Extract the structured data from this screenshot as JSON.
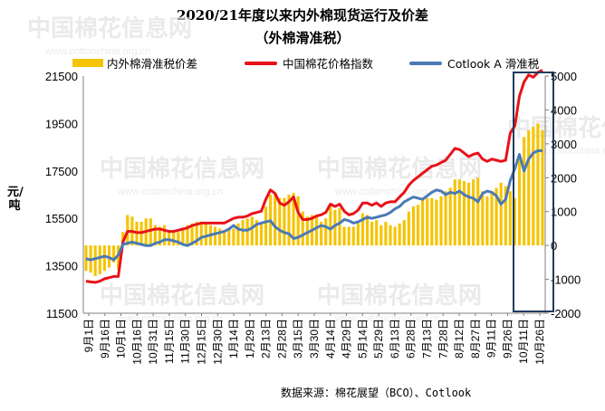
{
  "page": {
    "title": "2020/21年度以来内外棉现货运行及价差",
    "subtitle": "（外棉滑准税）",
    "source": "数据来源：棉花展望（BCO）、Cotlook"
  },
  "legend": {
    "series1": "内外棉滑准税价差",
    "series2": "中国棉花价格指数",
    "series3": "Cotlook A 滑准税"
  },
  "watermark": {
    "cn": "中国棉花信息网",
    "en": "www.cottonchina.org.cn"
  },
  "colors": {
    "spread": "#f5c400",
    "china_index": "#e8121a",
    "cotlook": "#4a7ab5",
    "highlight_box": "#1f3b5c"
  },
  "chart_data": {
    "type": "line",
    "ylabel": "元/吨",
    "y_left": {
      "lim": [
        11500,
        21500
      ],
      "ticks": [
        11500,
        13500,
        15500,
        17500,
        19500,
        21500
      ]
    },
    "y_right": {
      "lim": [
        -2000,
        5000
      ],
      "ticks": [
        -2000,
        -1000,
        0,
        1000,
        2000,
        3000,
        4000,
        5000
      ]
    },
    "x_tick_labels": [
      "9月1日",
      "9月16日",
      "10月1日",
      "10月16日",
      "10月31日",
      "11月15日",
      "11月30日",
      "12月15日",
      "12月30日",
      "1月14日",
      "1月29日",
      "2月13日",
      "2月28日",
      "3月15日",
      "3月30日",
      "4月14日",
      "4月29日",
      "5月14日",
      "5月29日",
      "6月13日",
      "6月28日",
      "7月13日",
      "7月28日",
      "8月12日",
      "8月27日",
      "9月11日",
      "9月26日",
      "10月11日",
      "10月26日"
    ],
    "series": [
      {
        "name": "中国棉花价格指数",
        "axis": "left",
        "values": [
          12850,
          12820,
          12800,
          12850,
          12950,
          13000,
          13050,
          13050,
          14500,
          14950,
          14950,
          14900,
          14900,
          14950,
          15000,
          15050,
          15050,
          15000,
          14950,
          14950,
          15000,
          15050,
          15100,
          15200,
          15250,
          15300,
          15300,
          15300,
          15300,
          15300,
          15300,
          15400,
          15500,
          15550,
          15550,
          15600,
          15700,
          15750,
          15800,
          16300,
          16700,
          16550,
          16150,
          16050,
          16200,
          16400,
          15750,
          15450,
          15450,
          15500,
          15600,
          15650,
          15750,
          16100,
          16000,
          16100,
          15800,
          15650,
          15700,
          15850,
          16150,
          16150,
          16050,
          16150,
          16000,
          16150,
          16200,
          16200,
          16400,
          16600,
          16900,
          17100,
          17250,
          17400,
          17550,
          17700,
          17750,
          17850,
          17950,
          18200,
          18450,
          18400,
          18250,
          18100,
          18200,
          18250,
          18000,
          17900,
          18000,
          17950,
          17900,
          17950,
          19100,
          19400,
          20650,
          21250,
          21550,
          21450,
          21650,
          21750
        ]
      },
      {
        "name": "Cotlook A 滑准税",
        "axis": "left",
        "values": [
          13800,
          13750,
          13800,
          13850,
          13900,
          13850,
          13750,
          13950,
          14400,
          14450,
          14500,
          14450,
          14400,
          14350,
          14350,
          14450,
          14500,
          14600,
          14600,
          14550,
          14500,
          14400,
          14350,
          14450,
          14550,
          14700,
          14750,
          14800,
          14850,
          14900,
          14950,
          15050,
          15200,
          15050,
          15000,
          15000,
          15100,
          15250,
          15300,
          15350,
          15400,
          15150,
          15000,
          14900,
          14850,
          14650,
          14700,
          14800,
          14900,
          15000,
          15100,
          15200,
          15150,
          15050,
          15200,
          15300,
          15450,
          15400,
          15300,
          15350,
          15450,
          15550,
          15500,
          15550,
          15600,
          15650,
          15750,
          15900,
          16000,
          16200,
          16300,
          16400,
          16350,
          16300,
          16450,
          16600,
          16700,
          16650,
          16500,
          16600,
          16550,
          16650,
          16500,
          16400,
          16350,
          16200,
          16550,
          16650,
          16600,
          16450,
          16100,
          16300,
          17100,
          17600,
          18200,
          17500,
          18000,
          18250,
          18350,
          18350
        ]
      },
      {
        "name": "内外棉滑准税价差",
        "axis": "right",
        "values": [
          -750,
          -800,
          -900,
          -850,
          -750,
          -650,
          -500,
          -700,
          400,
          900,
          850,
          700,
          700,
          800,
          800,
          600,
          550,
          600,
          450,
          400,
          400,
          500,
          600,
          650,
          700,
          700,
          650,
          600,
          550,
          500,
          450,
          500,
          500,
          650,
          750,
          800,
          850,
          750,
          700,
          1150,
          1500,
          1550,
          1400,
          1400,
          1500,
          1550,
          1450,
          1000,
          850,
          900,
          850,
          700,
          800,
          1150,
          1050,
          1100,
          550,
          550,
          550,
          650,
          950,
          900,
          700,
          750,
          600,
          700,
          600,
          550,
          650,
          750,
          1000,
          1150,
          1200,
          1350,
          1400,
          1400,
          1350,
          1450,
          1600,
          1700,
          1950,
          1950,
          1900,
          1850,
          1950,
          2000,
          1600,
          1450,
          1600,
          1700,
          1850,
          1750,
          1600,
          1400,
          2650,
          3200,
          3400,
          3500,
          3600,
          3400
        ]
      }
    ],
    "highlight": "最后一段（9月下旬至10月26日）以深色框标出"
  }
}
